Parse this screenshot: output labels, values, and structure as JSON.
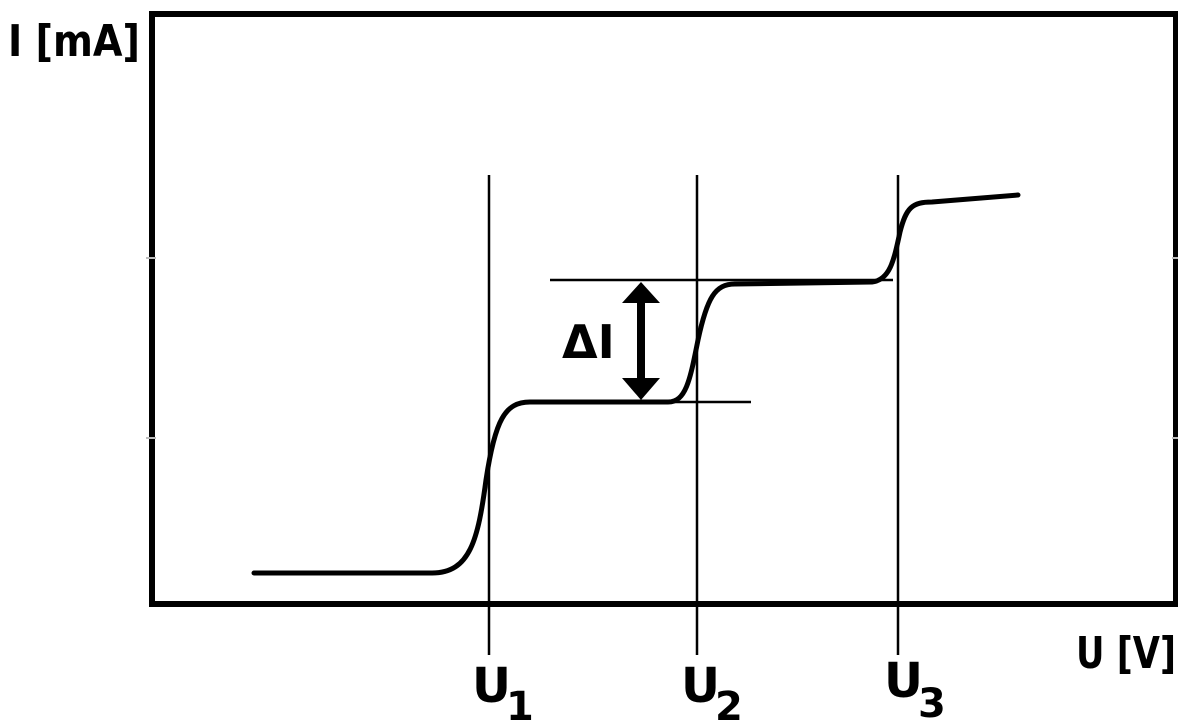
{
  "axes": {
    "y_label": "I [mA]",
    "x_label": "U [V]"
  },
  "markers": [
    {
      "letter": "U",
      "index": "1"
    },
    {
      "letter": "U",
      "index": "2"
    },
    {
      "letter": "U",
      "index": "3"
    }
  ],
  "delta_label": "ΔI",
  "colors": {
    "line": "#000000",
    "background": "#ffffff"
  }
}
